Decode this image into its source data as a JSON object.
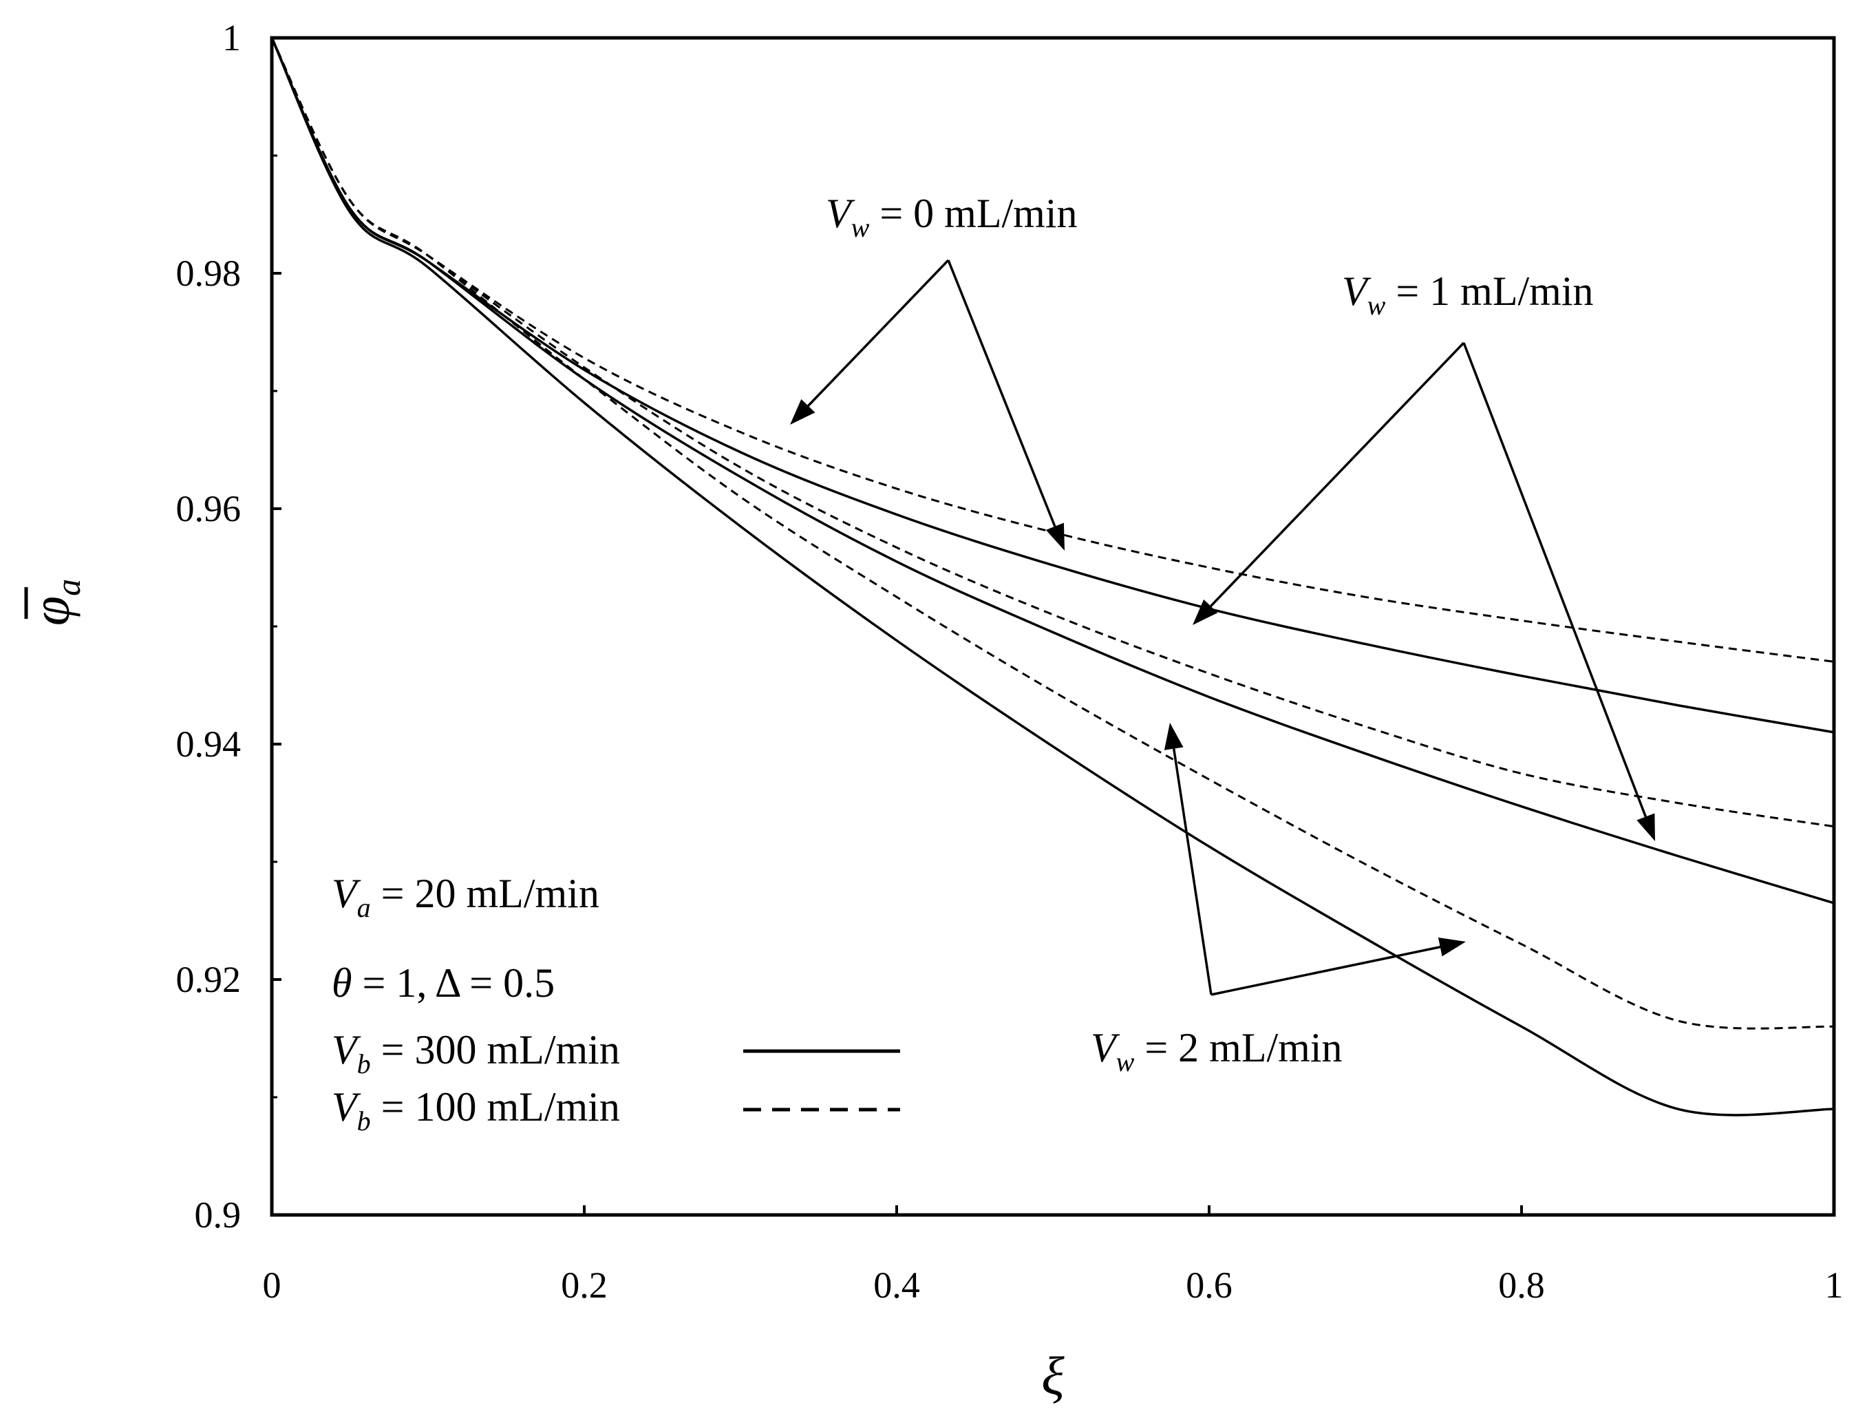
{
  "chart_data": {
    "type": "line",
    "title": "",
    "xlabel": "ξ",
    "ylabel": "φ̄a",
    "ylabel_main": "φ",
    "ylabel_sub": "a",
    "xlim": [
      0,
      1
    ],
    "ylim": [
      0.9,
      1.0
    ],
    "x_ticks": [
      0,
      0.2,
      0.4,
      0.6,
      0.8,
      1
    ],
    "x_tick_labels": [
      "0",
      "0.2",
      "0.4",
      "0.6",
      "0.8",
      "1"
    ],
    "y_ticks": [
      0.9,
      0.92,
      0.94,
      0.96,
      0.98,
      1.0
    ],
    "y_tick_labels": [
      "0.9",
      "0.92",
      "0.94",
      "0.96",
      "0.98",
      "1"
    ],
    "x": [
      0,
      0.05,
      0.1,
      0.2,
      0.3,
      0.4,
      0.5,
      0.6,
      0.7,
      0.8,
      0.9,
      1.0
    ],
    "series": [
      {
        "name": "Vw = 0 mL/min, Vb = 300 mL/min",
        "style": "solid",
        "values": [
          1.0,
          0.9855,
          0.981,
          0.9718,
          0.9648,
          0.9595,
          0.9552,
          0.9515,
          0.9485,
          0.9458,
          0.9433,
          0.941
        ]
      },
      {
        "name": "Vw = 0 mL/min, Vb = 100 mL/min",
        "style": "dashed",
        "values": [
          1.0,
          0.9862,
          0.9815,
          0.9728,
          0.9665,
          0.9617,
          0.958,
          0.955,
          0.9525,
          0.9505,
          0.9487,
          0.947
        ]
      },
      {
        "name": "Vw = 1 mL/min, Vb = 300 mL/min",
        "style": "solid",
        "values": [
          1.0,
          0.9855,
          0.981,
          0.971,
          0.9627,
          0.9555,
          0.9495,
          0.944,
          0.9392,
          0.9347,
          0.9305,
          0.9265
        ]
      },
      {
        "name": "Vw = 1 mL/min, Vb = 100 mL/min",
        "style": "dashed",
        "values": [
          1.0,
          0.9862,
          0.9815,
          0.972,
          0.9635,
          0.9567,
          0.951,
          0.946,
          0.9415,
          0.9375,
          0.935,
          0.933
        ]
      },
      {
        "name": "Vw = 2 mL/min, Vb = 300 mL/min",
        "style": "solid",
        "values": [
          1.0,
          0.9852,
          0.9805,
          0.969,
          0.9585,
          0.9488,
          0.9398,
          0.9313,
          0.9235,
          0.916,
          0.909,
          0.909
        ]
      },
      {
        "name": "Vw = 2 mL/min, Vb = 100 mL/min",
        "style": "dashed",
        "values": [
          1.0,
          0.9862,
          0.9815,
          0.971,
          0.961,
          0.9525,
          0.9445,
          0.937,
          0.9298,
          0.923,
          0.9165,
          0.916
        ]
      }
    ],
    "annotations": {
      "vw0": {
        "v": "V",
        "sub": "w",
        "rest": " = 0 mL/min"
      },
      "vw1": {
        "v": "V",
        "sub": "w",
        "rest": " = 1 mL/min"
      },
      "vw2": {
        "v": "V",
        "sub": "w",
        "rest": " = 2 mL/min"
      },
      "va": {
        "v": "V",
        "sub": "a",
        "rest": " = 20 mL/min"
      },
      "theta": {
        "sym": "θ",
        "rest": " = 1, Δ = 0.5"
      },
      "legend_solid": {
        "v": "V",
        "sub": "b",
        "rest": " = 300 mL/min"
      },
      "legend_dashed": {
        "v": "V",
        "sub": "b",
        "rest": " = 100 mL/min"
      }
    }
  }
}
